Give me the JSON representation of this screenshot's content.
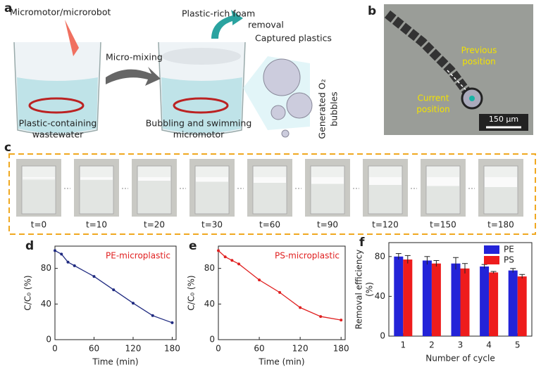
{
  "panel_a": {
    "label": "a",
    "texts": [
      "Micromotor/microrobot",
      "Plastic-rich foam",
      "removal",
      "Micro-mixing",
      "Captured plastics",
      "Generated O₂",
      "bubbles",
      "Plastic-containing",
      "wastewater",
      "Bubbling and swimming",
      "micromotor"
    ]
  },
  "panel_b": {
    "label": "b",
    "texts": [
      "Previous",
      "position",
      "Current",
      "position",
      "150 µm"
    ]
  },
  "panel_c": {
    "label": "c",
    "labels": [
      "t=0",
      "t=10",
      "t=20",
      "t=30",
      "t=60",
      "t=90",
      "t=120",
      "t=150",
      "t=180"
    ]
  },
  "chart_data": [
    {
      "type": "line",
      "label": "d",
      "annotation": "PE-microplastic",
      "xlabel": "Time (min)",
      "ylabel": "C/C₀ (%)",
      "x": [
        0,
        10,
        20,
        30,
        60,
        90,
        120,
        150,
        180
      ],
      "series": [
        {
          "name": "PE-microplastic",
          "color": "#1f2a80",
          "values": [
            100,
            96,
            87,
            83,
            71,
            56,
            41,
            27,
            19
          ]
        }
      ],
      "xlim": [
        0,
        186
      ],
      "ylim": [
        0,
        105
      ],
      "xticks": [
        0,
        60,
        120,
        180
      ],
      "yticks": [
        0,
        40,
        80
      ]
    },
    {
      "type": "line",
      "label": "e",
      "annotation": "PS-microplastic",
      "xlabel": "Time (min)",
      "ylabel": "C/C₀ (%)",
      "x": [
        0,
        10,
        20,
        30,
        60,
        90,
        120,
        150,
        180
      ],
      "series": [
        {
          "name": "PS-microplastic",
          "color": "#e02020",
          "values": [
            100,
            93,
            89,
            85,
            67,
            53,
            36,
            26,
            22
          ]
        }
      ],
      "xlim": [
        0,
        186
      ],
      "ylim": [
        0,
        105
      ],
      "xticks": [
        0,
        60,
        120,
        180
      ],
      "yticks": [
        0,
        40,
        80
      ]
    },
    {
      "type": "bar",
      "label": "f",
      "xlabel": "Number of cycle",
      "ylabel": "Removal efficiency",
      "ylabel2": "(%)",
      "categories": [
        "1",
        "2",
        "3",
        "4",
        "5"
      ],
      "series": [
        {
          "name": "PE",
          "color": "#2323d8",
          "values": [
            80,
            76,
            73,
            70,
            66
          ],
          "errors": [
            3,
            4,
            6,
            2,
            2
          ]
        },
        {
          "name": "PS",
          "color": "#ee1c1c",
          "values": [
            77,
            73,
            68,
            64,
            60
          ],
          "errors": [
            4,
            3,
            5,
            1,
            2
          ]
        }
      ],
      "ylim": [
        0,
        94
      ],
      "yticks": [
        0,
        40,
        80
      ],
      "legend": "upper right"
    }
  ]
}
